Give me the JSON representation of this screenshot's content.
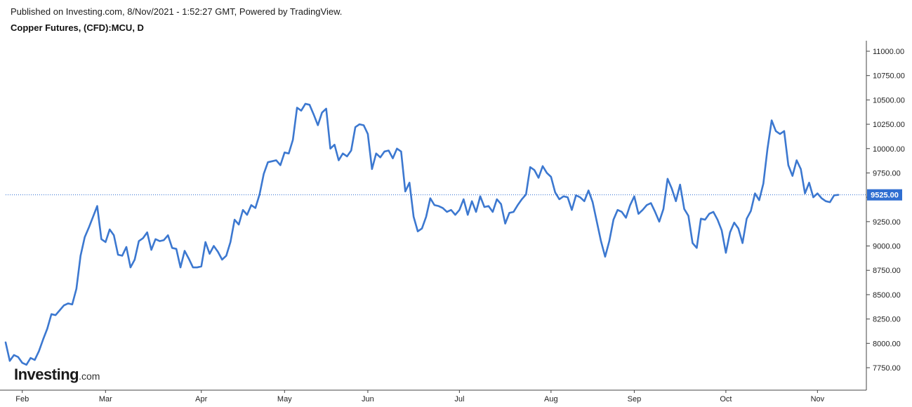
{
  "header": {
    "published": "Published on Investing.com, 8/Nov/2021 - 1:52:27 GMT, Powered by TradingView.",
    "title": "Copper Futures, (CFD):MCU, D"
  },
  "logo": {
    "main": "Investing",
    "suffix": ".com"
  },
  "colors": {
    "line": "#3c78d0",
    "price_label_bg": "#2f6ed1",
    "grid": "#e6e6e6",
    "axis": "#444444"
  },
  "chart_data": {
    "type": "line",
    "title": "Copper Futures, (CFD):MCU, D",
    "xlabel": "",
    "ylabel": "",
    "ylim": [
      7560,
      11080
    ],
    "y_ticks": [
      7750,
      8000,
      8250,
      8500,
      8750,
      9000,
      9250,
      9500,
      9750,
      10000,
      10250,
      10500,
      10750,
      11000
    ],
    "y_tick_labels": [
      "7750.00",
      "8000.00",
      "8250.00",
      "8500.00",
      "8750.00",
      "9000.00",
      "9250.00",
      "9500.00",
      "9750.00",
      "10000.00",
      "10250.00",
      "10500.00",
      "10750.00",
      "11000.00"
    ],
    "x_ticks": [
      {
        "label": "Feb",
        "index": 4
      },
      {
        "label": "Mar",
        "index": 24
      },
      {
        "label": "Apr",
        "index": 47
      },
      {
        "label": "May",
        "index": 67
      },
      {
        "label": "Jun",
        "index": 87
      },
      {
        "label": "Jul",
        "index": 109
      },
      {
        "label": "Aug",
        "index": 131
      },
      {
        "label": "Sep",
        "index": 151
      },
      {
        "label": "Oct",
        "index": 173
      },
      {
        "label": "Nov",
        "index": 195
      }
    ],
    "last_price": 9525,
    "last_price_label": "9525.00",
    "grid": false,
    "series": [
      {
        "values": [
          8010,
          7820,
          7880,
          7860,
          7800,
          7780,
          7850,
          7830,
          7920,
          8040,
          8150,
          8300,
          8290,
          8340,
          8390,
          8410,
          8400,
          8560,
          8900,
          9090,
          9190,
          9300,
          9410,
          9070,
          9040,
          9170,
          9110,
          8910,
          8900,
          8990,
          8780,
          8860,
          9050,
          9080,
          9140,
          8960,
          9070,
          9050,
          9060,
          9110,
          8980,
          8970,
          8780,
          8950,
          8870,
          8780,
          8780,
          8790,
          9040,
          8920,
          9000,
          8940,
          8860,
          8900,
          9040,
          9270,
          9220,
          9370,
          9320,
          9420,
          9390,
          9530,
          9740,
          9860,
          9870,
          9880,
          9830,
          9960,
          9950,
          10090,
          10420,
          10390,
          10460,
          10450,
          10350,
          10240,
          10370,
          10410,
          10000,
          10040,
          9880,
          9950,
          9920,
          9980,
          10220,
          10250,
          10240,
          10150,
          9790,
          9950,
          9910,
          9970,
          9980,
          9900,
          10000,
          9970,
          9560,
          9650,
          9300,
          9150,
          9180,
          9300,
          9490,
          9420,
          9410,
          9390,
          9350,
          9370,
          9320,
          9370,
          9480,
          9320,
          9460,
          9350,
          9510,
          9400,
          9410,
          9350,
          9480,
          9430,
          9230,
          9340,
          9350,
          9420,
          9480,
          9530,
          9810,
          9780,
          9700,
          9820,
          9750,
          9710,
          9550,
          9480,
          9510,
          9500,
          9370,
          9520,
          9500,
          9460,
          9570,
          9450,
          9250,
          9050,
          8890,
          9050,
          9270,
          9370,
          9350,
          9290,
          9420,
          9510,
          9330,
          9370,
          9420,
          9440,
          9350,
          9250,
          9380,
          9690,
          9590,
          9460,
          9630,
          9380,
          9310,
          9030,
          8980,
          9280,
          9270,
          9330,
          9350,
          9270,
          9160,
          8930,
          9140,
          9240,
          9180,
          9030,
          9280,
          9360,
          9540,
          9470,
          9640,
          10000,
          10290,
          10180,
          10150,
          10180,
          9830,
          9720,
          9880,
          9790,
          9540,
          9650,
          9500,
          9540,
          9490,
          9460,
          9450,
          9520,
          9525
        ]
      }
    ]
  }
}
